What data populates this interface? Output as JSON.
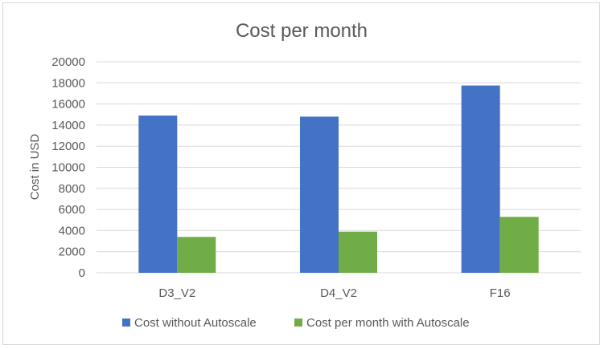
{
  "chart_data": {
    "type": "bar",
    "title": "Cost per month",
    "xlabel": "",
    "ylabel": "Cost in USD",
    "ylim": [
      0,
      20000
    ],
    "yticks": [
      0,
      2000,
      4000,
      6000,
      8000,
      10000,
      12000,
      14000,
      16000,
      18000,
      20000
    ],
    "grid": true,
    "legend_position": "bottom",
    "categories": [
      "D3_V2",
      "D4_V2",
      "F16"
    ],
    "series": [
      {
        "name": "Cost without Autoscale",
        "color": "#4472c4",
        "values": [
          14900,
          14800,
          17750
        ]
      },
      {
        "name": "Cost per month with Autoscale",
        "color": "#70ad47",
        "values": [
          3400,
          3900,
          5300
        ]
      }
    ]
  }
}
